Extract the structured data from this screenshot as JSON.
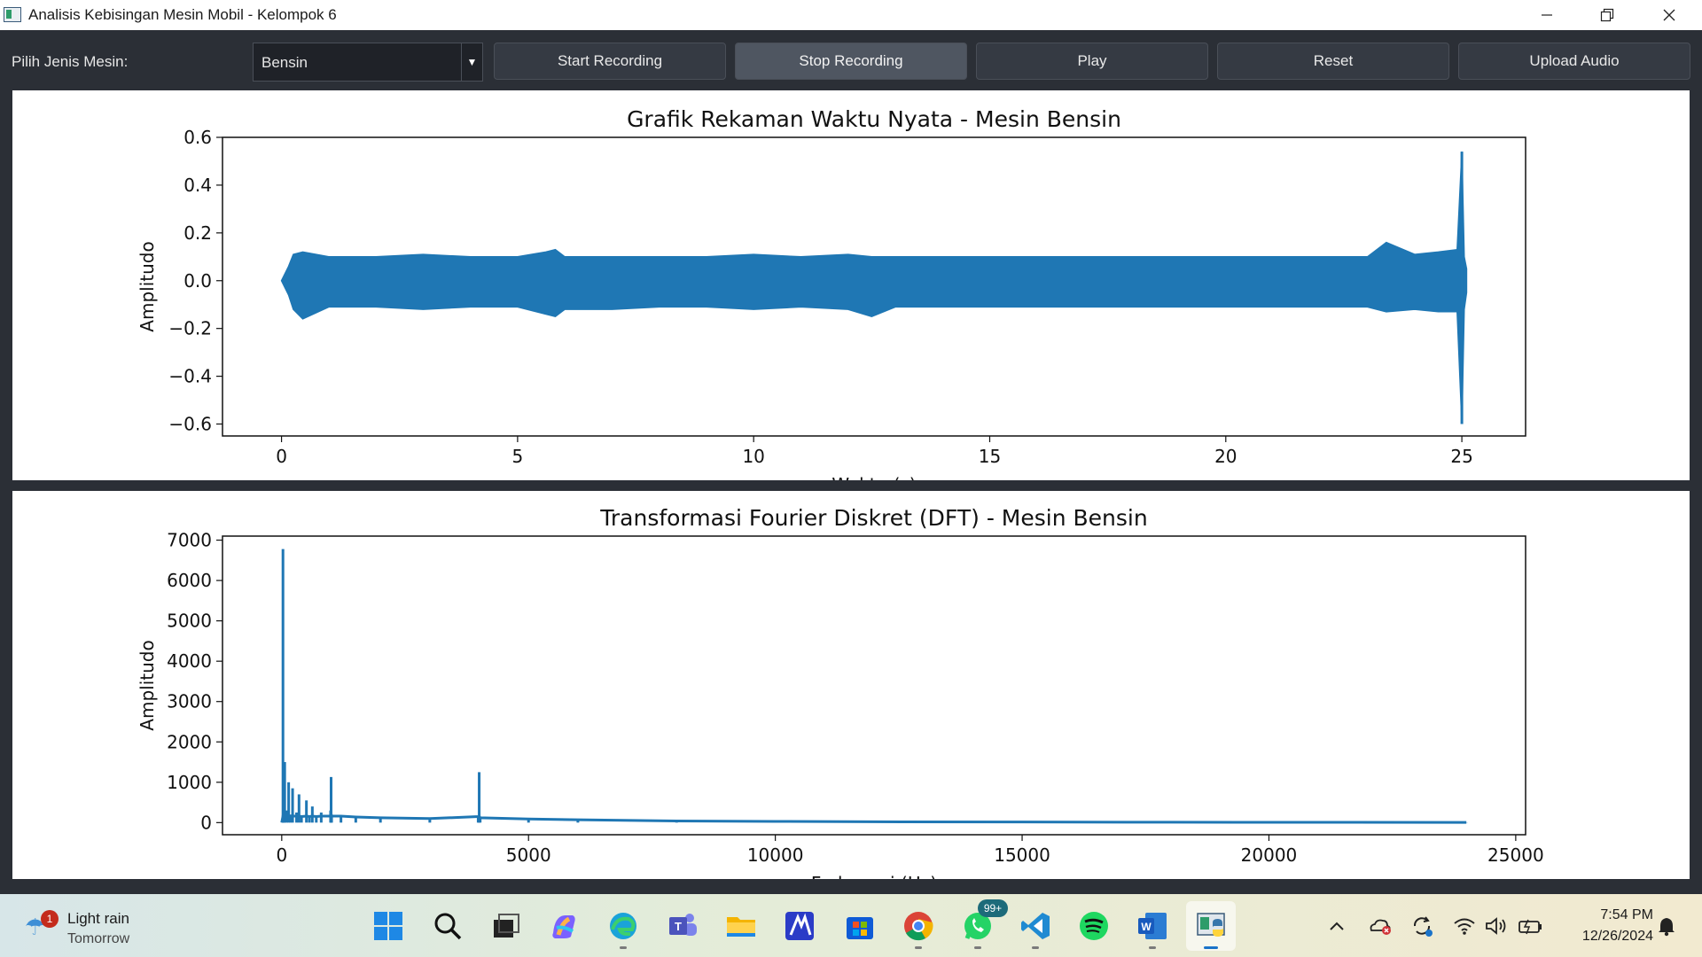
{
  "window": {
    "title": "Analisis Kebisingan Mesin Mobil - Kelompok 6",
    "controls": [
      "minimize",
      "restore",
      "close"
    ]
  },
  "toolbar": {
    "engine_label": "Pilih Jenis Mesin:",
    "engine_selected": "Bensin",
    "buttons": {
      "start": "Start Recording",
      "stop": "Stop Recording",
      "play": "Play",
      "reset": "Reset",
      "upload": "Upload Audio"
    }
  },
  "colors": {
    "series": "#1f77b4",
    "app_bg": "#2b2f36",
    "button_bg": "#353a43",
    "button_active_bg": "#4f5661"
  },
  "chart_data": [
    {
      "type": "line",
      "title": "Grafik Rekaman Waktu Nyata - Mesin Bensin",
      "xlabel": "Waktu (s)",
      "ylabel": "Amplitudo",
      "xlim": [
        -1.25,
        26.35
      ],
      "ylim": [
        -0.65,
        0.6
      ],
      "xticks": [
        0,
        5,
        10,
        15,
        20,
        25
      ],
      "yticks": [
        -0.6,
        -0.4,
        -0.2,
        0.0,
        0.2,
        0.4,
        0.6
      ],
      "ytick_labels": [
        "−0.6",
        "−0.4",
        "−0.2",
        "0.0",
        "0.2",
        "0.4",
        "0.6"
      ],
      "series": [
        {
          "x": [
            0,
            0.15,
            0.25,
            0.45,
            1,
            2,
            3,
            4,
            5,
            5.6,
            5.8,
            6,
            7,
            8,
            9,
            10,
            11,
            12,
            12.5,
            13,
            14,
            15,
            16,
            17,
            18,
            19,
            20,
            21,
            22,
            23,
            23.4,
            24,
            24.5,
            24.9,
            25.0,
            25.05,
            25.1
          ],
          "upper": [
            0.0,
            0.06,
            0.11,
            0.12,
            0.1,
            0.1,
            0.11,
            0.1,
            0.1,
            0.12,
            0.13,
            0.1,
            0.1,
            0.1,
            0.1,
            0.11,
            0.1,
            0.11,
            0.1,
            0.1,
            0.1,
            0.1,
            0.1,
            0.1,
            0.1,
            0.1,
            0.1,
            0.1,
            0.1,
            0.1,
            0.16,
            0.11,
            0.12,
            0.13,
            0.54,
            0.1,
            0.05
          ],
          "lower": [
            0.0,
            -0.06,
            -0.12,
            -0.16,
            -0.11,
            -0.11,
            -0.12,
            -0.11,
            -0.11,
            -0.14,
            -0.15,
            -0.12,
            -0.12,
            -0.11,
            -0.11,
            -0.12,
            -0.11,
            -0.12,
            -0.15,
            -0.11,
            -0.11,
            -0.11,
            -0.11,
            -0.11,
            -0.11,
            -0.11,
            -0.11,
            -0.11,
            -0.11,
            -0.11,
            -0.13,
            -0.12,
            -0.13,
            -0.13,
            -0.6,
            -0.12,
            -0.05
          ]
        }
      ]
    },
    {
      "type": "line",
      "title": "Transformasi Fourier Diskret (DFT) - Mesin Bensin",
      "xlabel": "Frekuensi (Hz)",
      "ylabel": "Amplitudo",
      "xlim": [
        -1200,
        25200
      ],
      "ylim": [
        -300,
        7100
      ],
      "xticks": [
        0,
        5000,
        10000,
        15000,
        20000,
        25000
      ],
      "yticks": [
        0,
        1000,
        2000,
        3000,
        4000,
        5000,
        6000,
        7000
      ],
      "series": [
        {
          "x": [
            0,
            25,
            40,
            60,
            100,
            140,
            180,
            220,
            300,
            350,
            400,
            500,
            560,
            620,
            700,
            800,
            990,
            1000,
            1010,
            1200,
            1500,
            2000,
            3000,
            3980,
            4000,
            4020,
            5000,
            6000,
            8000,
            10000,
            12000,
            15000,
            18000,
            20000,
            24000
          ],
          "values": [
            0,
            6780,
            200,
            1500,
            300,
            1000,
            200,
            850,
            250,
            700,
            150,
            550,
            150,
            400,
            150,
            250,
            300,
            1130,
            200,
            160,
            140,
            120,
            100,
            150,
            1250,
            120,
            90,
            70,
            40,
            30,
            20,
            15,
            10,
            8,
            5
          ]
        }
      ]
    }
  ],
  "taskbar": {
    "weather": {
      "title": "Light rain",
      "subtitle": "Tomorrow",
      "badge": "1"
    },
    "apps": [
      "windows-start-icon",
      "search-icon",
      "task-view-icon",
      "copilot-icon",
      "edge-icon",
      "teams-icon",
      "file-explorer-icon",
      "app-icon",
      "microsoft-store-icon",
      "chrome-icon",
      "whatsapp-icon",
      "vscode-icon",
      "spotify-icon",
      "word-icon",
      "python-app-icon"
    ],
    "whatsapp_badge": "99+",
    "clock": {
      "time": "7:54 PM",
      "date": "12/26/2024"
    }
  }
}
